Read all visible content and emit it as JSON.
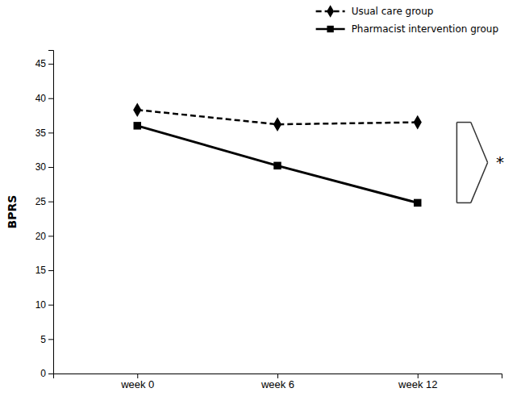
{
  "chart_data": {
    "type": "line",
    "categories": [
      "week 0",
      "week 6",
      "week 12"
    ],
    "series": [
      {
        "name": "Usual care group",
        "color": "#000000",
        "line_style": "dashed",
        "marker": "diamond",
        "values": [
          38.3,
          36.2,
          36.5
        ]
      },
      {
        "name": "Pharmacist intervention group",
        "color": "#000000",
        "line_style": "solid",
        "marker": "square",
        "values": [
          36.0,
          30.2,
          24.8
        ]
      }
    ],
    "ylabel": "BPRS",
    "ylim": [
      0,
      47
    ],
    "yticks": [
      0,
      5,
      10,
      15,
      20,
      25,
      30,
      35,
      40,
      45
    ],
    "grid": false,
    "legend": "upper right",
    "annotation": "*"
  }
}
